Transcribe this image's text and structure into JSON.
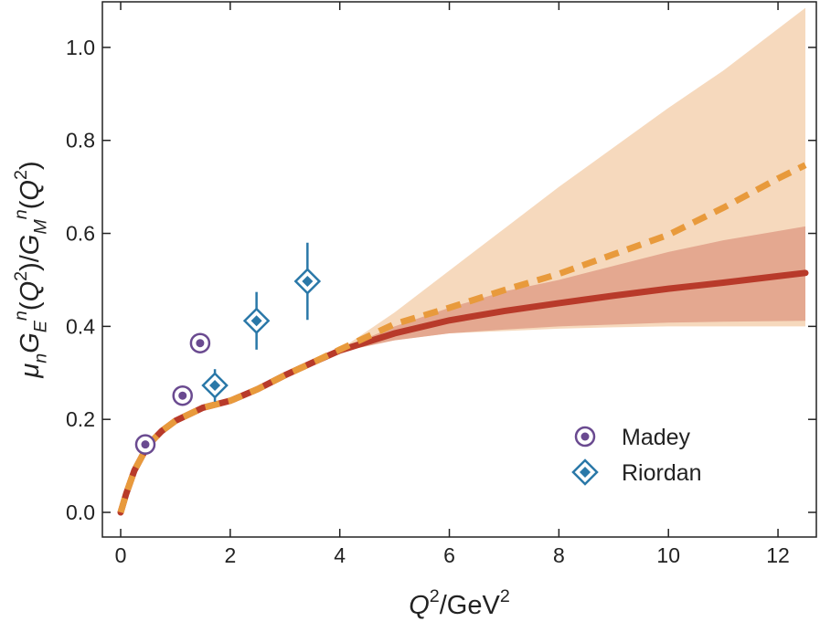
{
  "chart_data": {
    "type": "line",
    "xlabel": [
      "Q",
      "2",
      "/GeV",
      "2"
    ],
    "ylabel": [
      "μ",
      "n",
      "G",
      "E",
      "n",
      "(",
      "Q",
      "2",
      ")/",
      "G",
      "M",
      "n",
      "(",
      "Q",
      "2",
      ")"
    ],
    "xlim": [
      -0.334,
      12.7
    ],
    "ylim": [
      -0.053,
      1.098
    ],
    "xticks": [
      0,
      2,
      4,
      6,
      8,
      10,
      12
    ],
    "yticks": [
      {
        "value": 0,
        "label": "0.0"
      },
      {
        "value": 0.2,
        "label": "0.2"
      },
      {
        "value": 0.4,
        "label": "0.4"
      },
      {
        "value": 0.6,
        "label": "0.6"
      },
      {
        "value": 0.8,
        "label": "0.8"
      },
      {
        "value": 1.0,
        "label": "1.0"
      }
    ],
    "legend": "lower right",
    "series": [
      {
        "type": "band",
        "color": "#f6d9bd",
        "x": [
          3.8,
          4,
          5,
          6,
          7,
          8,
          9,
          10,
          11,
          12.5
        ],
        "upper": [
          0.34,
          0.35,
          0.43,
          0.52,
          0.61,
          0.7,
          0.785,
          0.87,
          0.95,
          1.085
        ],
        "lower": [
          0.34,
          0.348,
          0.37,
          0.385,
          0.39,
          0.395,
          0.398,
          0.4,
          0.4,
          0.4
        ]
      },
      {
        "type": "band",
        "color": "#e4a890",
        "x": [
          3.8,
          4,
          5,
          6,
          7,
          8,
          9,
          10,
          11,
          12.5
        ],
        "upper": [
          0.34,
          0.35,
          0.4,
          0.44,
          0.475,
          0.5,
          0.53,
          0.56,
          0.585,
          0.615
        ],
        "lower": [
          0.34,
          0.345,
          0.37,
          0.385,
          0.393,
          0.4,
          0.404,
          0.408,
          0.41,
          0.412
        ]
      },
      {
        "type": "line",
        "color": "#b83a2a",
        "dash": false,
        "x": [
          0,
          0.1,
          0.25,
          0.5,
          0.75,
          1,
          1.5,
          2,
          2.5,
          3,
          3.5,
          4,
          5,
          6,
          7,
          8,
          9,
          10,
          11,
          12,
          12.5
        ],
        "values": [
          0,
          0.04,
          0.09,
          0.145,
          0.175,
          0.197,
          0.225,
          0.24,
          0.265,
          0.295,
          0.322,
          0.348,
          0.385,
          0.413,
          0.433,
          0.45,
          0.466,
          0.481,
          0.494,
          0.508,
          0.515
        ]
      },
      {
        "type": "line",
        "color": "#e89a3c",
        "dash": true,
        "x": [
          0,
          0.1,
          0.25,
          0.5,
          0.75,
          1,
          1.5,
          2,
          2.5,
          3,
          3.5,
          4,
          5,
          6,
          7,
          8,
          9,
          10,
          11,
          12,
          12.5
        ],
        "values": [
          0,
          0.04,
          0.09,
          0.145,
          0.175,
          0.197,
          0.225,
          0.24,
          0.265,
          0.295,
          0.322,
          0.35,
          0.405,
          0.44,
          0.478,
          0.513,
          0.555,
          0.597,
          0.655,
          0.718,
          0.747
        ]
      },
      {
        "type": "scatter",
        "name": "Madey",
        "marker": "circle",
        "color": "#6a4a90",
        "x": [
          0.45,
          1.13,
          1.45
        ],
        "values": [
          0.146,
          0.251,
          0.364
        ]
      },
      {
        "type": "scatter",
        "name": "Riordan",
        "marker": "diamond",
        "color": "#2a78a8",
        "x": [
          1.72,
          2.48,
          3.41
        ],
        "values": [
          0.273,
          0.412,
          0.497
        ],
        "errors": [
          0.035,
          0.062,
          0.083
        ]
      }
    ]
  }
}
